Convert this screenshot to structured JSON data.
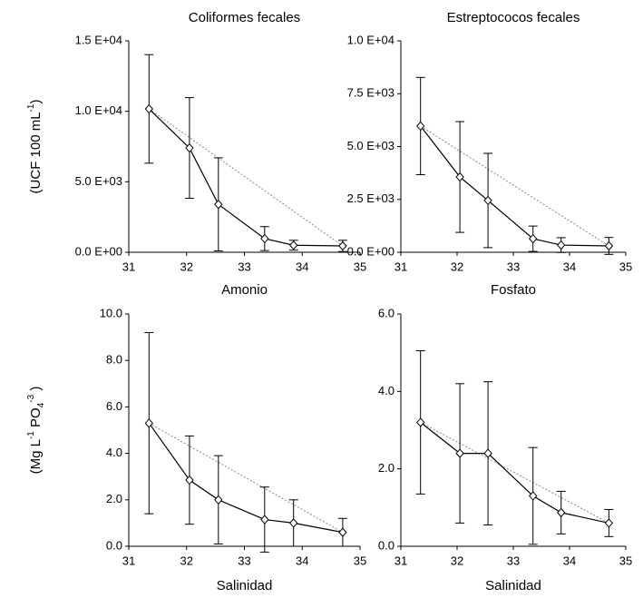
{
  "chart_data": [
    {
      "type": "line",
      "title": "Coliformes fecales",
      "ylabel_parts": [
        {
          "text": "(UCF 100 mL"
        },
        {
          "text": "-1",
          "shift": "super"
        },
        {
          "text": ")"
        }
      ],
      "x": [
        31.35,
        32.05,
        32.55,
        33.35,
        33.85,
        34.7
      ],
      "series": [
        {
          "color": "#000000",
          "values": [
            10170,
            7400,
            3400,
            970,
            500,
            450
          ],
          "errors": [
            3850,
            3570,
            3300,
            850,
            350,
            400
          ]
        }
      ],
      "ref_line_color": "#888888",
      "xlim": [
        31,
        35
      ],
      "xticks": [
        31,
        32,
        33,
        34,
        35
      ],
      "ylim": [
        0,
        15000
      ],
      "yticks": [
        {
          "value": 0,
          "label": "0.0 E+00"
        },
        {
          "value": 5000,
          "label": "5.0 E+03"
        },
        {
          "value": 10000,
          "label": "1.0 E+04"
        },
        {
          "value": 15000,
          "label": "1.5 E+04"
        }
      ]
    },
    {
      "type": "line",
      "title": "Estreptococos fecales",
      "x": [
        31.35,
        32.05,
        32.55,
        33.35,
        33.85,
        34.7
      ],
      "series": [
        {
          "color": "#000000",
          "values": [
            5970,
            3560,
            2450,
            640,
            340,
            300
          ],
          "errors": [
            2300,
            2620,
            2230,
            600,
            350,
            400
          ]
        }
      ],
      "ref_line_color": "#888888",
      "xlim": [
        31,
        35
      ],
      "xticks": [
        31,
        32,
        33,
        34,
        35
      ],
      "ylim": [
        0,
        10000
      ],
      "yticks": [
        {
          "value": 0,
          "label": "0.0 E+00"
        },
        {
          "value": 2500,
          "label": "2.5 E+03"
        },
        {
          "value": 5000,
          "label": "5.0 E+03"
        },
        {
          "value": 7500,
          "label": "7.5 E+03"
        },
        {
          "value": 10000,
          "label": "1.0 E+04"
        }
      ]
    },
    {
      "type": "line",
      "title": "Amonio",
      "xlabel": "Salinidad",
      "ylabel_parts": [
        {
          "text": "(Mg L"
        },
        {
          "text": "-1",
          "shift": "super"
        },
        {
          "text": " PO"
        },
        {
          "text": "4",
          "shift": "sub"
        },
        {
          "text": "-3",
          "shift": "super"
        },
        {
          "text": " )"
        }
      ],
      "x": [
        31.35,
        32.05,
        32.55,
        33.35,
        33.85,
        34.7
      ],
      "series": [
        {
          "color": "#000000",
          "values": [
            5.3,
            2.85,
            2.0,
            1.15,
            1.0,
            0.6
          ],
          "errors": [
            3.9,
            1.9,
            1.9,
            1.4,
            1.0,
            0.6
          ]
        }
      ],
      "ref_line_color": "#888888",
      "xlim": [
        31,
        35
      ],
      "xticks": [
        31,
        32,
        33,
        34,
        35
      ],
      "ylim": [
        0,
        10
      ],
      "yticks": [
        {
          "value": 0,
          "label": "0.0"
        },
        {
          "value": 2,
          "label": "2.0"
        },
        {
          "value": 4,
          "label": "4.0"
        },
        {
          "value": 6,
          "label": "6.0"
        },
        {
          "value": 8,
          "label": "8.0"
        },
        {
          "value": 10,
          "label": "10.0"
        }
      ]
    },
    {
      "type": "line",
      "title": "Fosfato",
      "xlabel": "Salinidad",
      "x": [
        31.35,
        32.05,
        32.55,
        33.35,
        33.85,
        34.7
      ],
      "series": [
        {
          "color": "#000000",
          "values": [
            3.2,
            2.4,
            2.4,
            1.3,
            0.87,
            0.6
          ],
          "errors": [
            1.85,
            1.8,
            1.85,
            1.25,
            0.55,
            0.35
          ]
        }
      ],
      "ref_line_color": "#888888",
      "xlim": [
        31,
        35
      ],
      "xticks": [
        31,
        32,
        33,
        34,
        35
      ],
      "ylim": [
        0,
        6
      ],
      "yticks": [
        {
          "value": 0,
          "label": "0.0"
        },
        {
          "value": 2,
          "label": "2.0"
        },
        {
          "value": 4,
          "label": "4.0"
        },
        {
          "value": 6,
          "label": "6.0"
        }
      ]
    }
  ]
}
